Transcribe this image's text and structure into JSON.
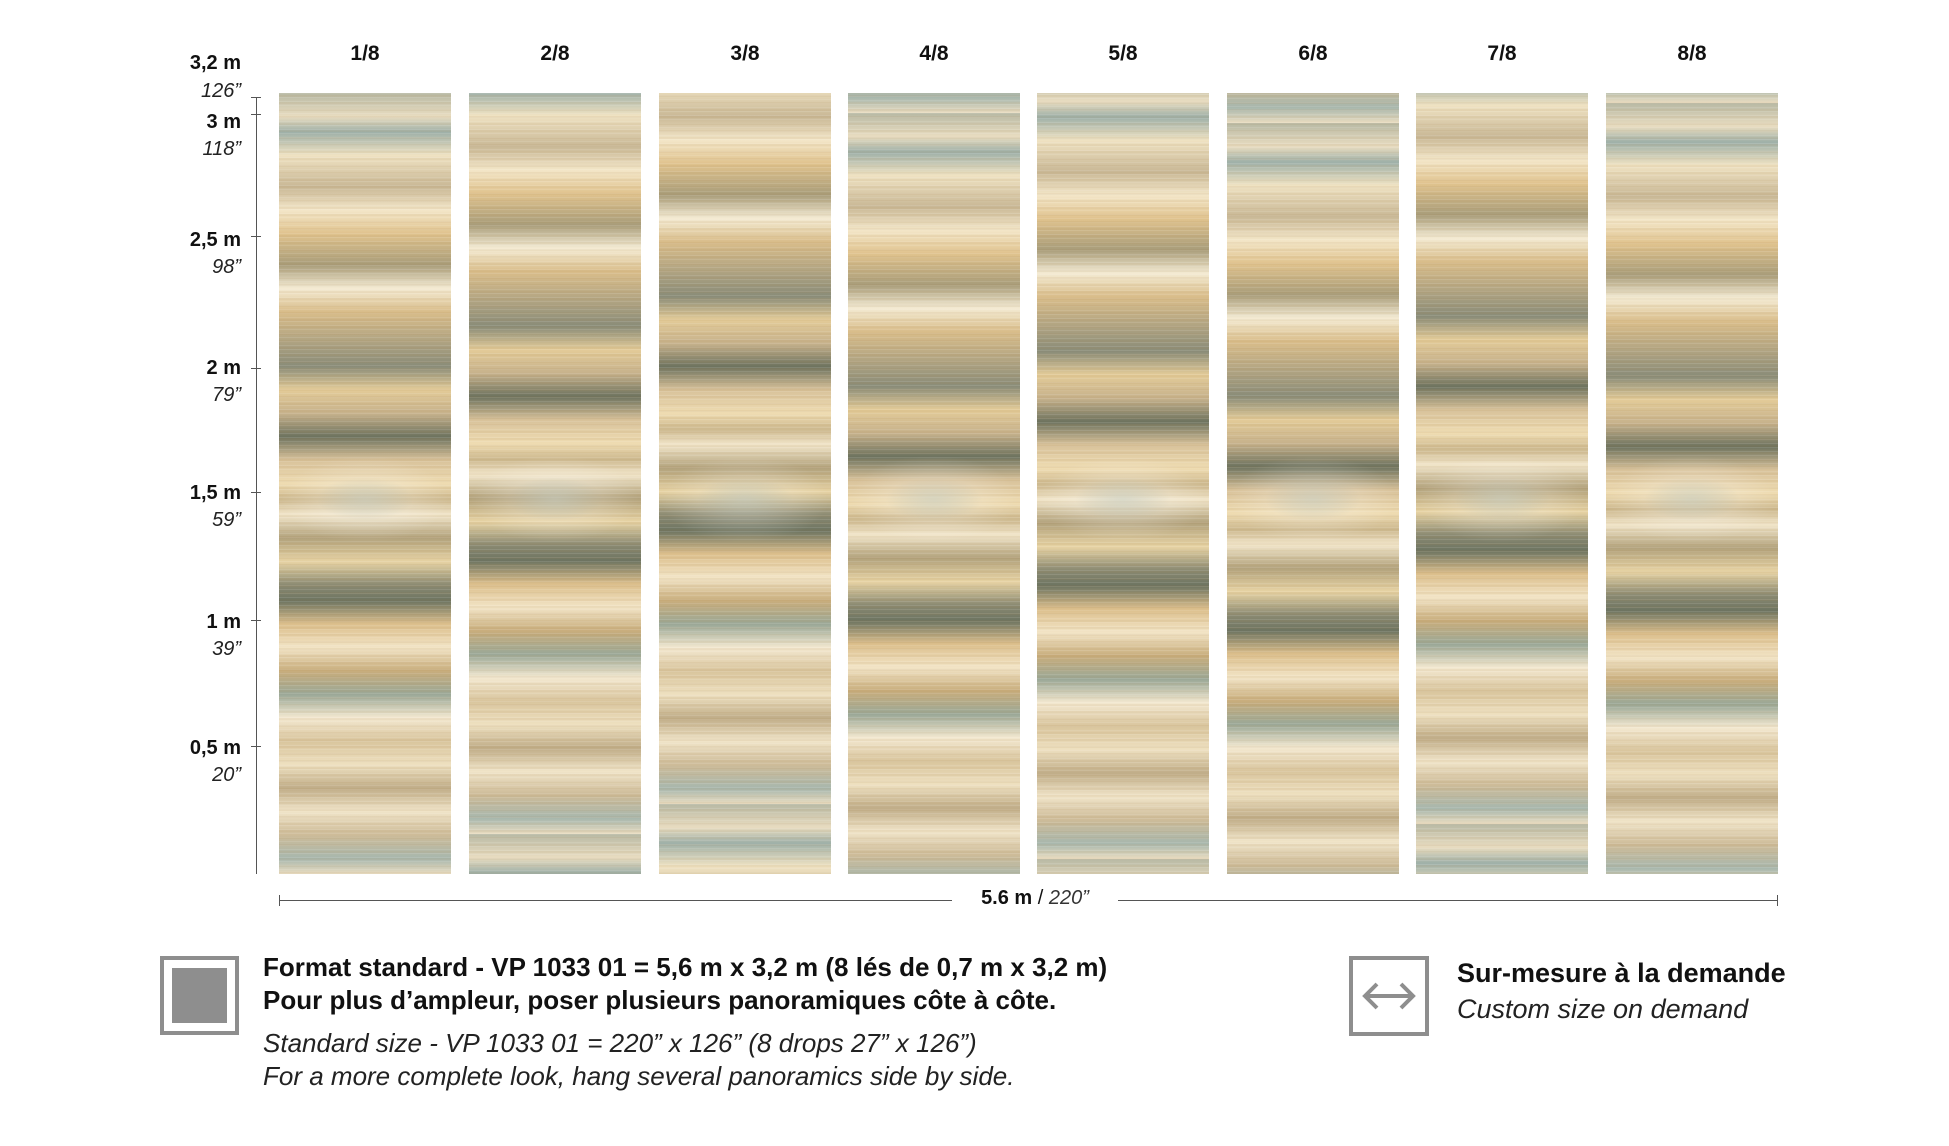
{
  "drops": [
    {
      "label": "1/8"
    },
    {
      "label": "2/8"
    },
    {
      "label": "3/8"
    },
    {
      "label": "4/8"
    },
    {
      "label": "5/8"
    },
    {
      "label": "6/8"
    },
    {
      "label": "7/8"
    },
    {
      "label": "8/8"
    }
  ],
  "height_scale": [
    {
      "metric": "3,2 m",
      "imperial": "126”"
    },
    {
      "metric": "3 m",
      "imperial": "118”"
    },
    {
      "metric": "2,5 m",
      "imperial": "98”"
    },
    {
      "metric": "2 m",
      "imperial": "79”"
    },
    {
      "metric": "1,5 m",
      "imperial": "59”"
    },
    {
      "metric": "1 m",
      "imperial": "39”"
    },
    {
      "metric": "0,5 m",
      "imperial": "20”"
    }
  ],
  "width": {
    "metric": "5.6 m",
    "separator": " / ",
    "imperial": "220”"
  },
  "standard": {
    "fr_line1": "Format standard - VP 1033 01 = 5,6 m x 3,2 m (8 lés de 0,7 m x 3,2 m)",
    "fr_line2": "Pour plus d’ampleur, poser plusieurs panoramiques côte à côte.",
    "en_line1": "Standard size - VP 1033 01 = 220” x 126” (8 drops 27” x 126”)",
    "en_line2": "For a more complete look, hang several panoramics side by side.",
    "icon": "square-swatch-icon"
  },
  "custom": {
    "fr": "Sur-mesure à la demande",
    "en": "Custom size on demand",
    "icon": "double-arrow-icon"
  },
  "colors": {
    "icon_gray": "#8e8e8e",
    "line": "#555555"
  }
}
